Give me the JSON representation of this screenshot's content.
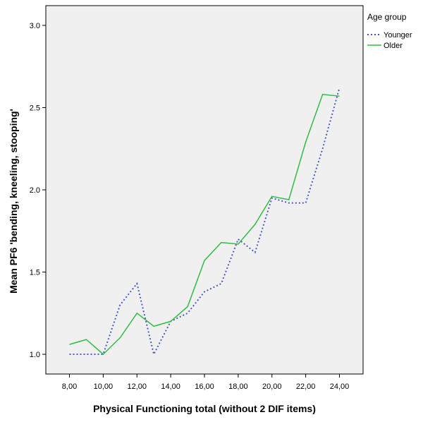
{
  "chart_data": {
    "type": "line",
    "xlabel": "Physical Functioning total (without 2 DIF items)",
    "ylabel": "Mean PF6 'bending, kneeling, stooping'",
    "xlim": [
      6.6,
      25.4
    ],
    "ylim": [
      0.88,
      3.12
    ],
    "x_ticks": [
      8,
      10,
      12,
      14,
      16,
      18,
      20,
      22,
      24
    ],
    "x_tick_labels": [
      "8,00",
      "10,00",
      "12,00",
      "14,00",
      "16,00",
      "18,00",
      "20,00",
      "22,00",
      "24,00"
    ],
    "y_ticks": [
      1.0,
      1.5,
      2.0,
      2.5,
      3.0
    ],
    "y_tick_labels": [
      "1.0",
      "1.5",
      "2.0",
      "2.5",
      "3.0"
    ],
    "legend": {
      "title": "Age group",
      "placement": "right"
    },
    "series": [
      {
        "name": "Younger",
        "color": "#4a5bc4",
        "style": "dotted",
        "x": [
          8,
          9,
          10,
          11,
          12,
          13,
          14,
          15,
          16,
          17,
          18,
          19,
          20,
          21,
          22,
          23,
          24
        ],
        "y": [
          1.0,
          1.0,
          1.0,
          1.3,
          1.43,
          1.0,
          1.2,
          1.25,
          1.38,
          1.43,
          1.7,
          1.62,
          1.95,
          1.92,
          1.92,
          2.25,
          2.62
        ]
      },
      {
        "name": "Older",
        "color": "#33bb44",
        "style": "solid",
        "x": [
          8,
          9,
          10,
          11,
          12,
          13,
          14,
          15,
          16,
          17,
          18,
          19,
          20,
          21,
          22,
          23,
          24
        ],
        "y": [
          1.06,
          1.09,
          1.0,
          1.1,
          1.25,
          1.17,
          1.2,
          1.29,
          1.57,
          1.68,
          1.67,
          1.79,
          1.96,
          1.94,
          2.29,
          2.58,
          2.57
        ]
      }
    ]
  }
}
